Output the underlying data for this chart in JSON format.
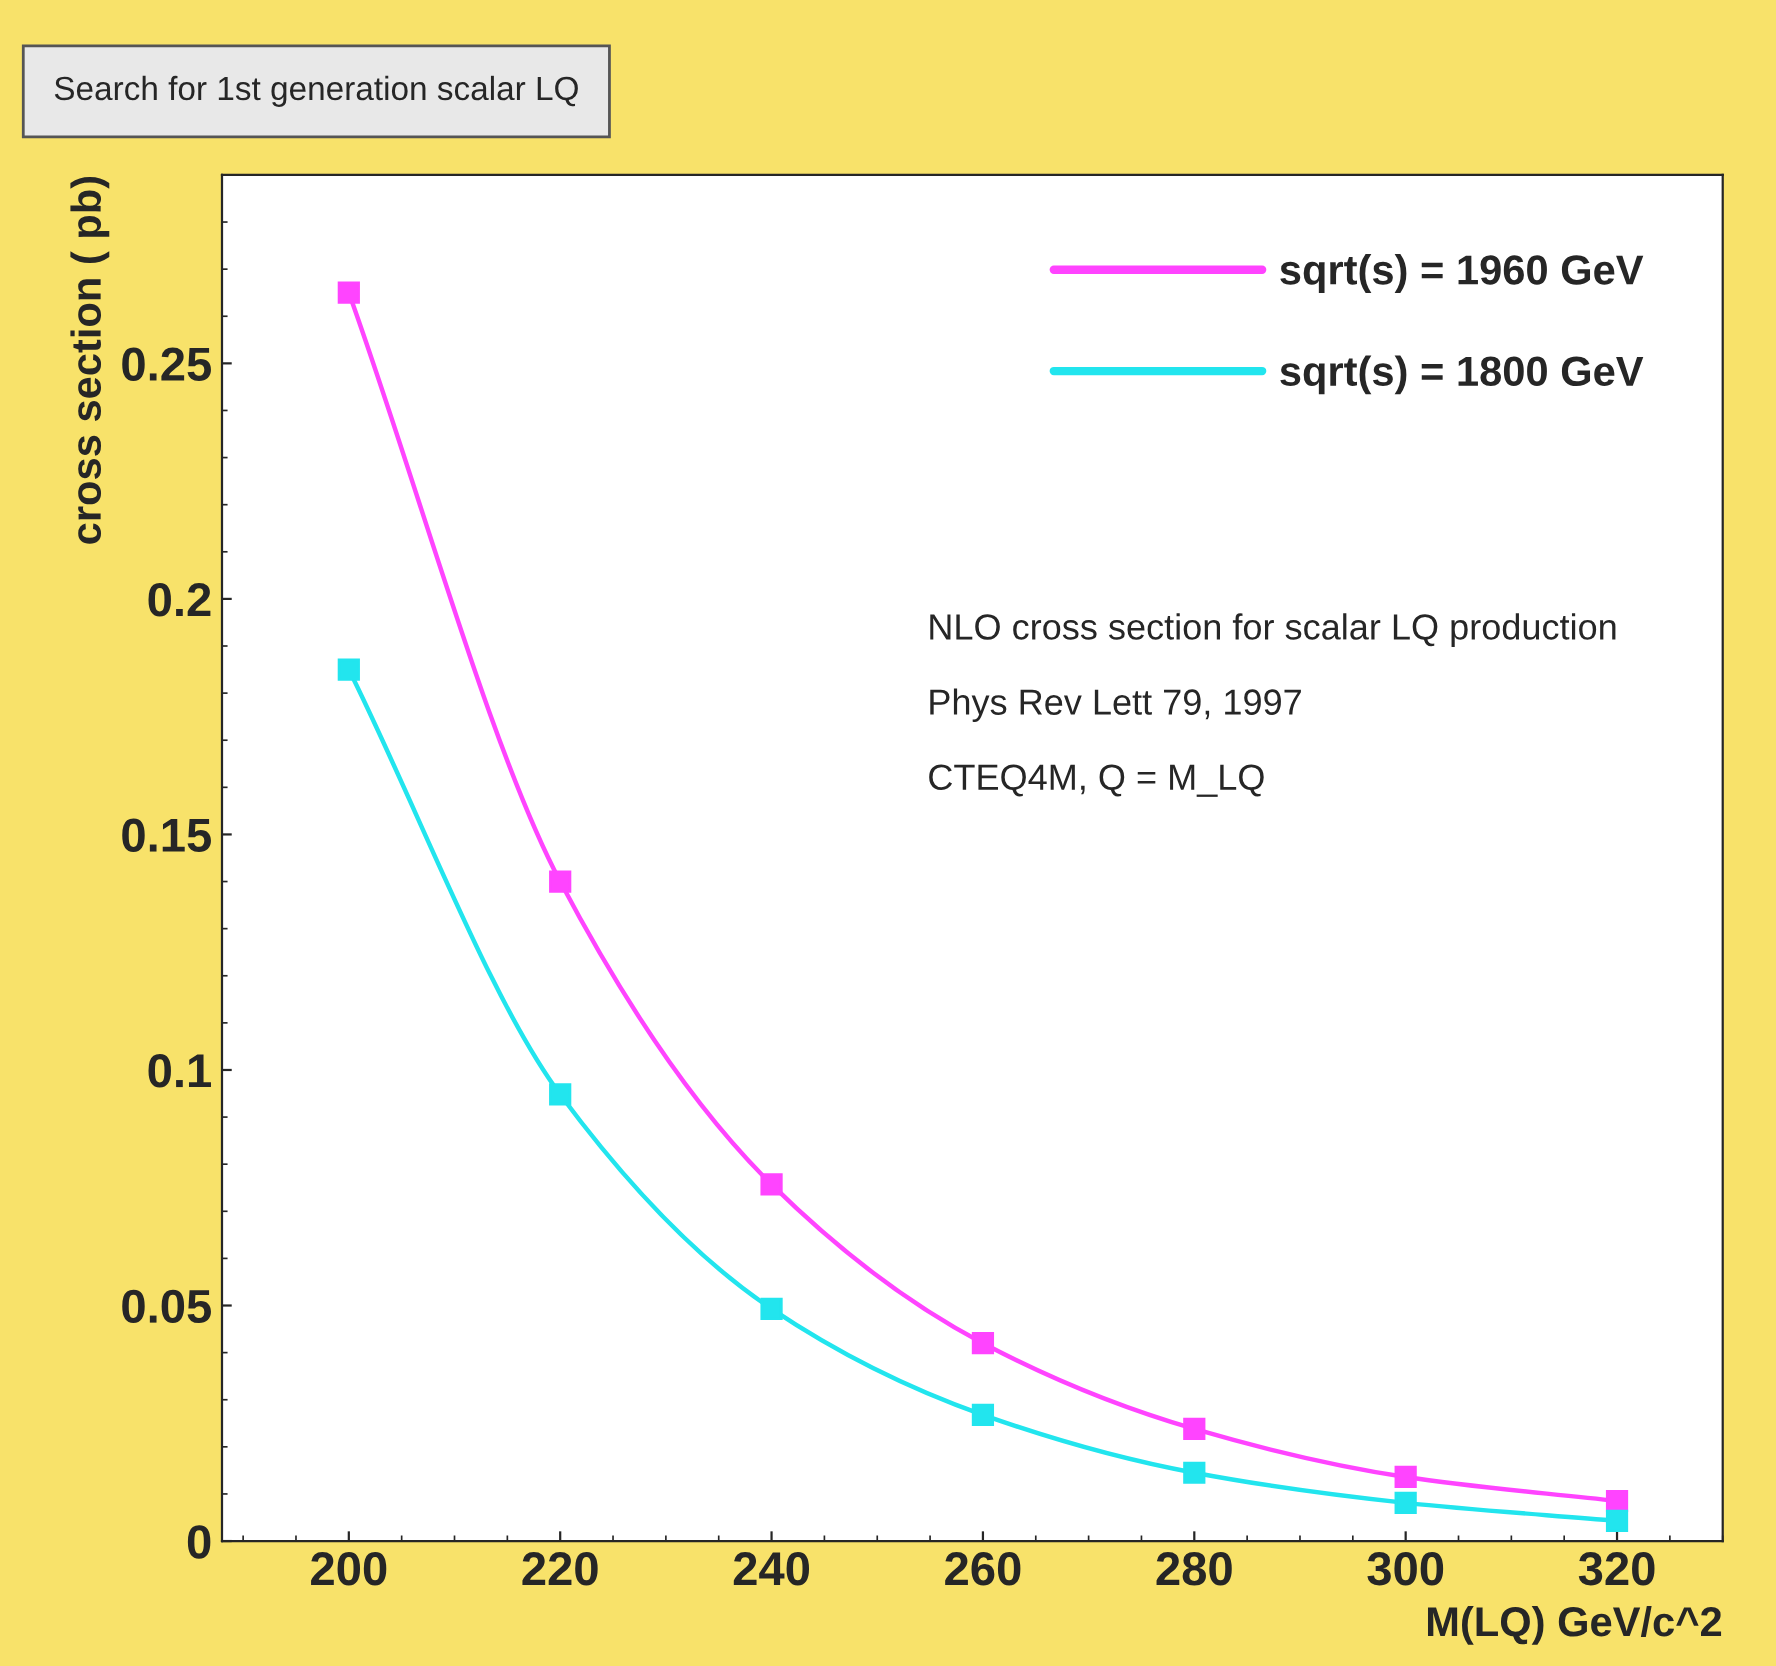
{
  "chart_data": {
    "type": "line",
    "title": "Search for 1st generation scalar LQ",
    "xlabel": "M(LQ) GeV/c^2",
    "ylabel": "cross section ( pb)",
    "x": [
      200,
      220,
      240,
      260,
      280,
      300,
      320
    ],
    "series": [
      {
        "name": "sqrt(s) = 1960 GeV",
        "color": "#ff44ff",
        "values": [
          0.265,
          0.14,
          0.0757,
          0.042,
          0.0238,
          0.0136,
          0.0085
        ]
      },
      {
        "name": "sqrt(s) = 1800 GeV",
        "color": "#22e5ee",
        "values": [
          0.185,
          0.0948,
          0.0493,
          0.0268,
          0.0145,
          0.0081,
          0.0043
        ]
      }
    ],
    "annotations": [
      "NLO cross section for scalar LQ production",
      "Phys Rev Lett 79, 1997",
      "CTEQ4M, Q = M_LQ"
    ],
    "xlim": [
      188,
      330
    ],
    "ylim": [
      0,
      0.29
    ],
    "xticks": [
      200,
      220,
      240,
      260,
      280,
      300,
      320
    ],
    "yticks": [
      0,
      0.05,
      0.1,
      0.15,
      0.2,
      0.25
    ],
    "marker": "square",
    "line_style": "solid",
    "grid": false,
    "legend": "top right"
  }
}
